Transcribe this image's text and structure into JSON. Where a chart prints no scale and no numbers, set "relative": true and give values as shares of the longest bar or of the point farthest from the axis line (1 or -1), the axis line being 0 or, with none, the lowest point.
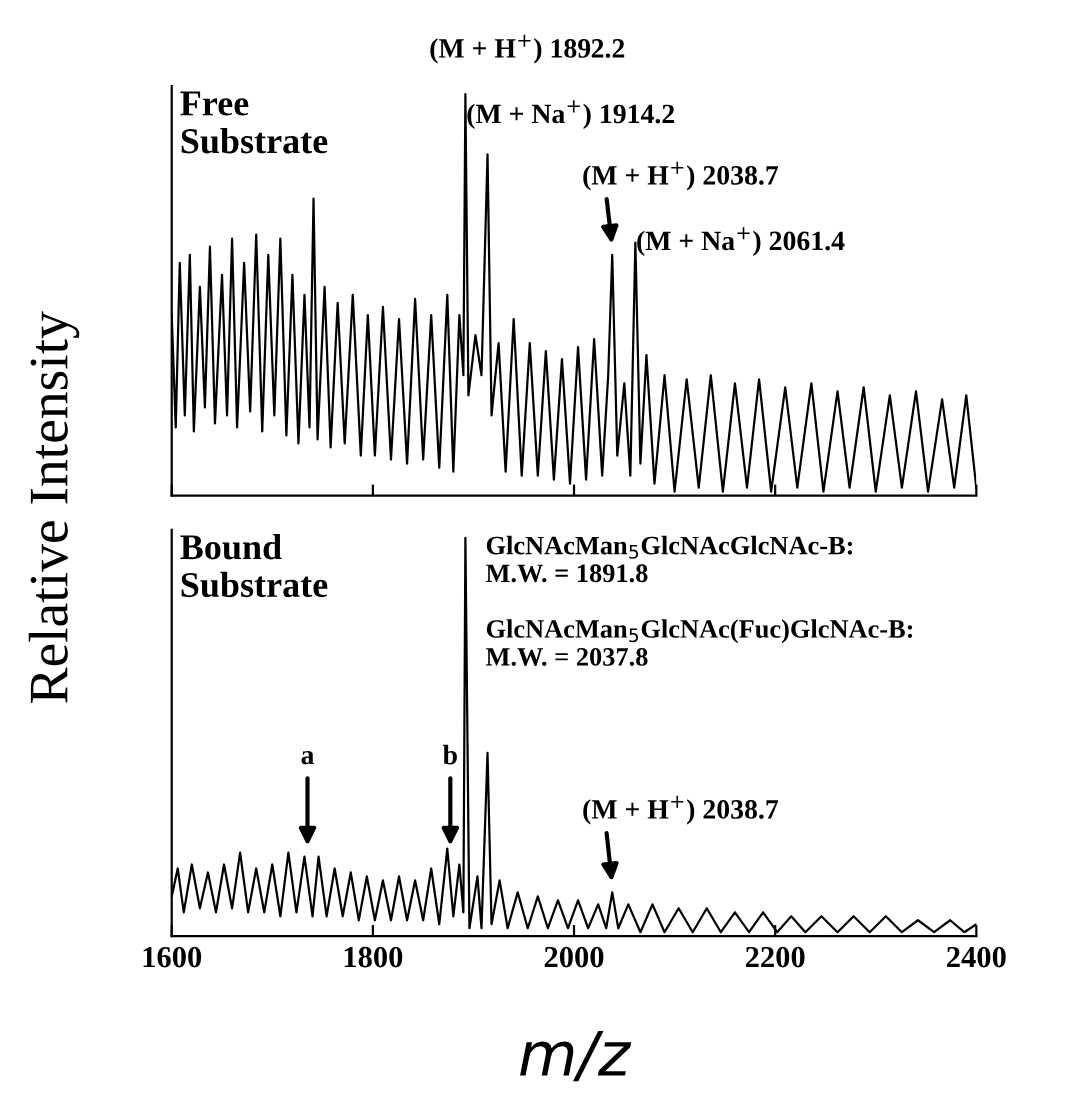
{
  "chart_data": [
    {
      "type": "line",
      "title": "Free\nSubstrate",
      "ylabel": "Relative Intensity",
      "relative": true,
      "tick_labels": false,
      "xlim": [
        1600,
        2400
      ],
      "xticks": [
        1600,
        1800,
        2000,
        2200,
        2400
      ],
      "x": [
        1600,
        1604,
        1608,
        1613,
        1618,
        1622,
        1628,
        1633,
        1638,
        1643,
        1650,
        1655,
        1660,
        1665,
        1672,
        1678,
        1684,
        1690,
        1696,
        1702,
        1708,
        1714,
        1720,
        1726,
        1732,
        1737,
        1741,
        1745,
        1752,
        1758,
        1765,
        1772,
        1780,
        1788,
        1795,
        1802,
        1810,
        1818,
        1826,
        1834,
        1842,
        1850,
        1858,
        1866,
        1874,
        1880,
        1886,
        1890,
        1892,
        1895,
        1902,
        1908,
        1914,
        1918,
        1925,
        1932,
        1940,
        1948,
        1956,
        1964,
        1972,
        1980,
        1988,
        1996,
        2004,
        2012,
        2020,
        2028,
        2034,
        2038,
        2043,
        2050,
        2056,
        2061,
        2066,
        2072,
        2080,
        2090,
        2100,
        2112,
        2124,
        2136,
        2148,
        2160,
        2172,
        2184,
        2196,
        2210,
        2222,
        2236,
        2248,
        2262,
        2274,
        2288,
        2300,
        2314,
        2326,
        2340,
        2352,
        2366,
        2378,
        2390,
        2400
      ],
      "series": [
        {
          "color": "#000000",
          "values": [
            0.45,
            0.17,
            0.58,
            0.2,
            0.6,
            0.16,
            0.52,
            0.22,
            0.62,
            0.18,
            0.55,
            0.2,
            0.64,
            0.17,
            0.58,
            0.21,
            0.65,
            0.16,
            0.6,
            0.2,
            0.64,
            0.15,
            0.55,
            0.13,
            0.5,
            0.17,
            0.74,
            0.14,
            0.52,
            0.12,
            0.48,
            0.13,
            0.5,
            0.1,
            0.45,
            0.1,
            0.47,
            0.09,
            0.44,
            0.08,
            0.49,
            0.09,
            0.45,
            0.07,
            0.5,
            0.06,
            0.45,
            0.3,
            1.0,
            0.25,
            0.4,
            0.3,
            0.85,
            0.2,
            0.38,
            0.06,
            0.44,
            0.05,
            0.38,
            0.05,
            0.36,
            0.04,
            0.34,
            0.03,
            0.37,
            0.04,
            0.39,
            0.05,
            0.3,
            0.6,
            0.1,
            0.28,
            0.05,
            0.63,
            0.08,
            0.35,
            0.03,
            0.3,
            0.01,
            0.29,
            0.02,
            0.3,
            0.01,
            0.28,
            0.02,
            0.29,
            0.01,
            0.27,
            0.02,
            0.28,
            0.01,
            0.26,
            0.02,
            0.27,
            0.01,
            0.25,
            0.02,
            0.26,
            0.01,
            0.24,
            0.02,
            0.25,
            0.02
          ]
        }
      ],
      "annotations": [
        {
          "text": "(M + H$^{+}$) 1892.2",
          "x": 1892,
          "y": 1.0
        },
        {
          "text": "(M + Na$^{+}$) 1914.2",
          "x": 1914,
          "y": 0.85
        },
        {
          "text": "(M + H$^{+}$) 2038.7",
          "x": 2038,
          "y": 0.6
        },
        {
          "text": "(M + Na$^{+}$) 2061.4",
          "x": 2061,
          "y": 0.63
        }
      ]
    },
    {
      "type": "line",
      "title": "Bound\nSubstrate",
      "xlabel": "m/z",
      "relative": true,
      "tick_labels": "x",
      "xlim": [
        1600,
        2400
      ],
      "xticks": [
        1600,
        1800,
        2000,
        2200,
        2400
      ],
      "x": [
        1600,
        1606,
        1612,
        1620,
        1628,
        1636,
        1644,
        1652,
        1660,
        1668,
        1676,
        1684,
        1692,
        1700,
        1708,
        1716,
        1724,
        1732,
        1740,
        1746,
        1754,
        1762,
        1770,
        1778,
        1786,
        1794,
        1802,
        1810,
        1818,
        1826,
        1834,
        1842,
        1850,
        1858,
        1866,
        1874,
        1880,
        1886,
        1890,
        1892,
        1896,
        1904,
        1908,
        1914,
        1918,
        1926,
        1934,
        1944,
        1954,
        1964,
        1974,
        1984,
        1994,
        2004,
        2014,
        2024,
        2032,
        2038,
        2044,
        2054,
        2066,
        2078,
        2090,
        2104,
        2118,
        2132,
        2146,
        2160,
        2174,
        2188,
        2202,
        2216,
        2230,
        2246,
        2262,
        2278,
        2294,
        2310,
        2326,
        2342,
        2358,
        2374,
        2388,
        2400
      ],
      "series": [
        {
          "color": "#000000",
          "values": [
            0.1,
            0.17,
            0.06,
            0.18,
            0.07,
            0.16,
            0.06,
            0.18,
            0.07,
            0.21,
            0.06,
            0.17,
            0.06,
            0.18,
            0.05,
            0.21,
            0.06,
            0.2,
            0.05,
            0.2,
            0.05,
            0.17,
            0.05,
            0.16,
            0.04,
            0.15,
            0.04,
            0.14,
            0.04,
            0.15,
            0.04,
            0.14,
            0.04,
            0.17,
            0.03,
            0.22,
            0.05,
            0.18,
            0.06,
            1.0,
            0.02,
            0.15,
            0.02,
            0.46,
            0.03,
            0.14,
            0.02,
            0.11,
            0.02,
            0.1,
            0.02,
            0.09,
            0.02,
            0.09,
            0.02,
            0.08,
            0.02,
            0.11,
            0.02,
            0.08,
            0.01,
            0.08,
            0.01,
            0.07,
            0.01,
            0.07,
            0.01,
            0.06,
            0.01,
            0.06,
            0.01,
            0.05,
            0.01,
            0.05,
            0.01,
            0.05,
            0.01,
            0.05,
            0.01,
            0.04,
            0.01,
            0.04,
            0.01,
            0.03
          ]
        }
      ],
      "annotations": [
        {
          "text": "a",
          "x": 1735,
          "y": 0.2
        },
        {
          "text": "b",
          "x": 1877,
          "y": 0.2
        },
        {
          "text": "(M + H$^{+}$) 2038.7",
          "x": 2038,
          "y": 0.11
        },
        "GlcNAcMan$_{5}$GlcNAcGlcNAc-B:\nM.W. = 1891.8",
        "GlcNAcMan$_{5}$GlcNAc(Fuc)GlcNAc-B:\nM.W. = 2037.8"
      ]
    }
  ]
}
